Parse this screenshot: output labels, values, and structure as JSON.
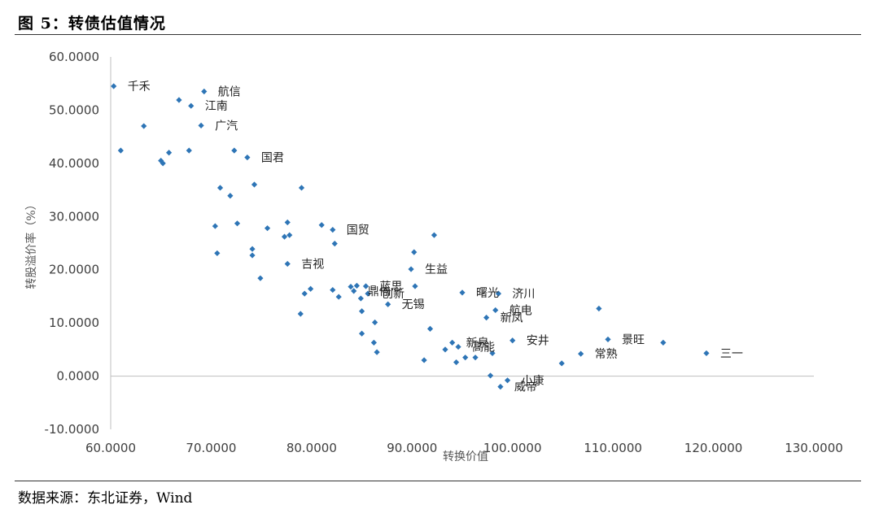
{
  "header": {
    "title": "图 5：转债估值情况"
  },
  "footer": {
    "source": "数据来源：东北证券，Wind"
  },
  "chart_data": {
    "type": "scatter",
    "title": "",
    "xlabel": "转换价值",
    "ylabel": "转股溢价率（%）",
    "xlim": [
      60,
      130
    ],
    "ylim": [
      -10,
      60
    ],
    "x_ticks": [
      "60.0000",
      "70.0000",
      "80.0000",
      "90.0000",
      "100.0000",
      "110.0000",
      "120.0000",
      "130.0000"
    ],
    "y_ticks": [
      "-10.0000",
      "0.0000",
      "10.0000",
      "20.0000",
      "30.0000",
      "40.0000",
      "50.0000",
      "60.0000"
    ],
    "grid": false,
    "marker_color": "#2e75b6",
    "points": [
      {
        "x": 60.3,
        "y": 54.5,
        "label": "千禾"
      },
      {
        "x": 61.0,
        "y": 42.4
      },
      {
        "x": 63.3,
        "y": 47.0
      },
      {
        "x": 65.0,
        "y": 40.5
      },
      {
        "x": 65.2,
        "y": 40.0
      },
      {
        "x": 65.8,
        "y": 42.0
      },
      {
        "x": 66.8,
        "y": 51.9
      },
      {
        "x": 67.8,
        "y": 42.4
      },
      {
        "x": 68.0,
        "y": 50.8,
        "label": "江南"
      },
      {
        "x": 69.0,
        "y": 47.1,
        "label": "广汽"
      },
      {
        "x": 69.3,
        "y": 53.5,
        "label": "航信"
      },
      {
        "x": 70.4,
        "y": 28.2
      },
      {
        "x": 70.6,
        "y": 23.1
      },
      {
        "x": 70.9,
        "y": 35.4
      },
      {
        "x": 71.9,
        "y": 33.9
      },
      {
        "x": 72.3,
        "y": 42.4
      },
      {
        "x": 72.6,
        "y": 28.7
      },
      {
        "x": 73.6,
        "y": 41.1,
        "label": "国君"
      },
      {
        "x": 74.1,
        "y": 23.9
      },
      {
        "x": 74.1,
        "y": 22.7
      },
      {
        "x": 74.3,
        "y": 36.0
      },
      {
        "x": 74.9,
        "y": 18.4
      },
      {
        "x": 75.6,
        "y": 27.8
      },
      {
        "x": 77.3,
        "y": 26.2
      },
      {
        "x": 77.6,
        "y": 28.9
      },
      {
        "x": 77.6,
        "y": 21.1,
        "label": "吉视"
      },
      {
        "x": 77.8,
        "y": 26.5
      },
      {
        "x": 79.0,
        "y": 35.4
      },
      {
        "x": 78.9,
        "y": 11.7
      },
      {
        "x": 79.3,
        "y": 15.5
      },
      {
        "x": 79.9,
        "y": 16.4
      },
      {
        "x": 81.0,
        "y": 28.4
      },
      {
        "x": 82.1,
        "y": 27.5,
        "label": "国贸"
      },
      {
        "x": 82.1,
        "y": 16.2
      },
      {
        "x": 82.3,
        "y": 24.9
      },
      {
        "x": 82.7,
        "y": 14.9
      },
      {
        "x": 83.9,
        "y": 16.8
      },
      {
        "x": 84.2,
        "y": 16.0,
        "label": "鼎信"
      },
      {
        "x": 84.5,
        "y": 17.0
      },
      {
        "x": 84.9,
        "y": 14.6
      },
      {
        "x": 85.0,
        "y": 12.2
      },
      {
        "x": 85.0,
        "y": 8.0
      },
      {
        "x": 85.4,
        "y": 16.9,
        "label": "蓝思"
      },
      {
        "x": 85.6,
        "y": 15.5,
        "label": "创新"
      },
      {
        "x": 86.2,
        "y": 6.3
      },
      {
        "x": 86.3,
        "y": 10.1
      },
      {
        "x": 86.5,
        "y": 4.5
      },
      {
        "x": 87.6,
        "y": 13.5,
        "label": "无锡"
      },
      {
        "x": 89.9,
        "y": 20.1,
        "label": "生益"
      },
      {
        "x": 90.2,
        "y": 23.3
      },
      {
        "x": 90.3,
        "y": 16.9
      },
      {
        "x": 91.2,
        "y": 3.0
      },
      {
        "x": 91.8,
        "y": 8.9
      },
      {
        "x": 92.2,
        "y": 26.5
      },
      {
        "x": 93.3,
        "y": 5.0
      },
      {
        "x": 94.0,
        "y": 6.3,
        "label": "新泉"
      },
      {
        "x": 94.4,
        "y": 2.6
      },
      {
        "x": 94.6,
        "y": 5.5,
        "label": "高能"
      },
      {
        "x": 95.0,
        "y": 15.7,
        "label": "曙光"
      },
      {
        "x": 95.3,
        "y": 3.5
      },
      {
        "x": 96.3,
        "y": 3.5
      },
      {
        "x": 97.4,
        "y": 11.0,
        "label": "新凤"
      },
      {
        "x": 97.8,
        "y": 0.1
      },
      {
        "x": 98.0,
        "y": 4.3
      },
      {
        "x": 98.3,
        "y": 12.4,
        "label": "航电"
      },
      {
        "x": 98.6,
        "y": 15.5,
        "label": "济川"
      },
      {
        "x": 98.8,
        "y": -2.0,
        "label": "威帝"
      },
      {
        "x": 99.5,
        "y": -0.8,
        "label": "小康"
      },
      {
        "x": 100.0,
        "y": 6.7,
        "label": "安井"
      },
      {
        "x": 104.9,
        "y": 2.4
      },
      {
        "x": 106.8,
        "y": 4.2,
        "label": "常熟"
      },
      {
        "x": 108.6,
        "y": 12.7
      },
      {
        "x": 109.5,
        "y": 6.9,
        "label": "景旺"
      },
      {
        "x": 115.0,
        "y": 6.3
      },
      {
        "x": 119.3,
        "y": 4.3,
        "label": "三一"
      }
    ]
  }
}
